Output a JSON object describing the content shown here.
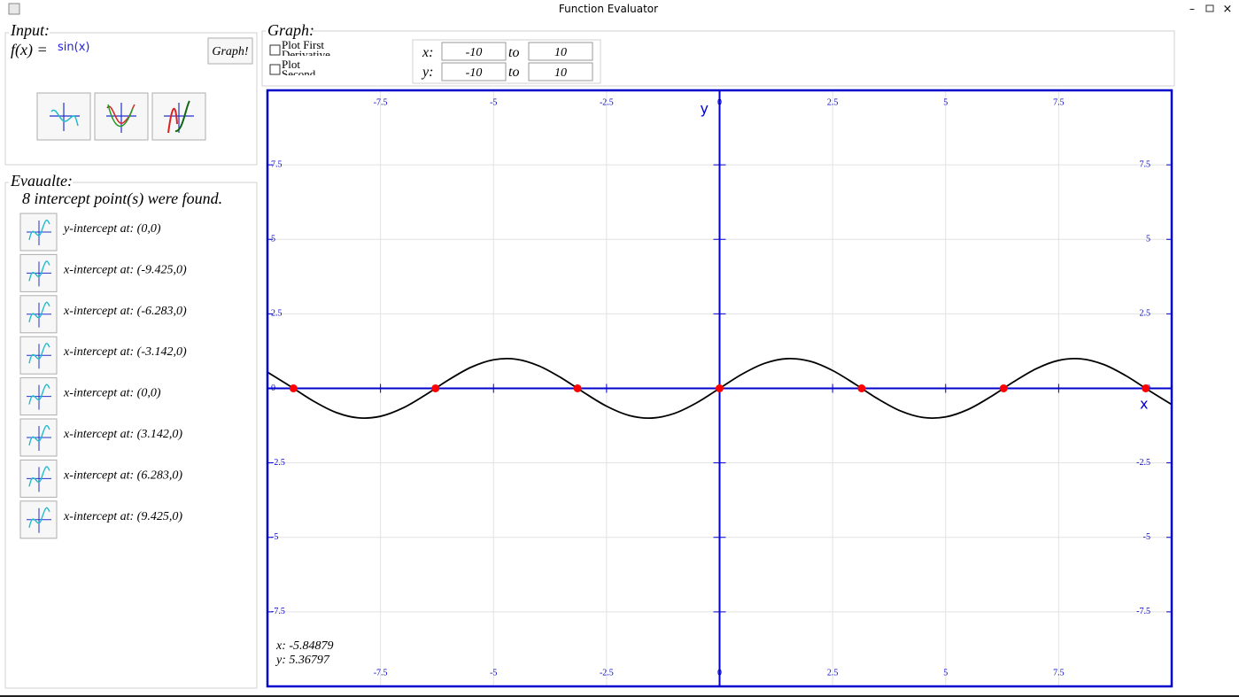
{
  "window": {
    "title": "Function Evaluator"
  },
  "input": {
    "label": "Input:",
    "fx_label": "f(x) =",
    "expression": "sin(x)",
    "graph_button": "Graph!"
  },
  "evaluate": {
    "label": "Evaualte:",
    "summary": "8 intercept point(s) were found.",
    "results": [
      "y-intercept at: (0,0)",
      "x-intercept at: (-9.425,0)",
      "x-intercept at: (-6.283,0)",
      "x-intercept at: (-3.142,0)",
      "x-intercept at: (0,0)",
      "x-intercept at: (3.142,0)",
      "x-intercept at: (6.283,0)",
      "x-intercept at: (9.425,0)"
    ]
  },
  "graph_panel": {
    "label": "Graph:",
    "first_derivative": "Plot First Derivative",
    "second_derivative": "Plot Second Derivative",
    "x_label": "x:",
    "x_from": "-10",
    "x_to_word": "to",
    "x_to": "10",
    "y_label": "y:",
    "y_from": "-10",
    "y_to_word": "to",
    "y_to": "10"
  },
  "chart_data": {
    "type": "line",
    "x_axis_label": "x",
    "y_axis_label": "y",
    "xlim": [
      -10,
      10
    ],
    "ylim": [
      -10,
      10
    ],
    "xticks": [
      -7.5,
      -5,
      -2.5,
      0,
      2.5,
      5,
      7.5
    ],
    "yticks": [
      -7.5,
      -5,
      -2.5,
      0,
      2.5,
      5,
      7.5
    ],
    "grid": true,
    "axis_color": "#0000cc",
    "x": [
      -10,
      -9.5,
      -9,
      -8.5,
      -8,
      -7.5,
      -7,
      -6.5,
      -6,
      -5.5,
      -5,
      -4.5,
      -4,
      -3.5,
      -3,
      -2.5,
      -2,
      -1.5,
      -1,
      -0.5,
      0,
      0.5,
      1,
      1.5,
      2,
      2.5,
      3,
      3.5,
      4,
      4.5,
      5,
      5.5,
      6,
      6.5,
      7,
      7.5,
      8,
      8.5,
      9,
      9.5,
      10
    ],
    "series": [
      {
        "color": "#000000",
        "values": [
          0.544,
          0.075,
          -0.412,
          -0.798,
          -0.989,
          -0.938,
          -0.657,
          -0.215,
          0.279,
          0.706,
          0.959,
          0.978,
          0.757,
          0.351,
          -0.141,
          -0.598,
          -0.909,
          -0.997,
          -0.841,
          -0.479,
          0,
          0.479,
          0.841,
          0.997,
          0.909,
          0.598,
          0.141,
          -0.351,
          -0.757,
          -0.978,
          -0.959,
          -0.706,
          -0.279,
          0.215,
          0.657,
          0.938,
          0.989,
          0.798,
          0.412,
          -0.075,
          -0.544
        ]
      }
    ],
    "points": {
      "color": "#ff0000",
      "x": [
        -9.425,
        -6.283,
        -3.142,
        0,
        3.142,
        6.283,
        9.425
      ],
      "values": [
        0,
        0,
        0,
        0,
        0,
        0,
        0
      ]
    },
    "cursor": {
      "x": "x: -5.84879",
      "y": "y: 5.36797"
    }
  }
}
